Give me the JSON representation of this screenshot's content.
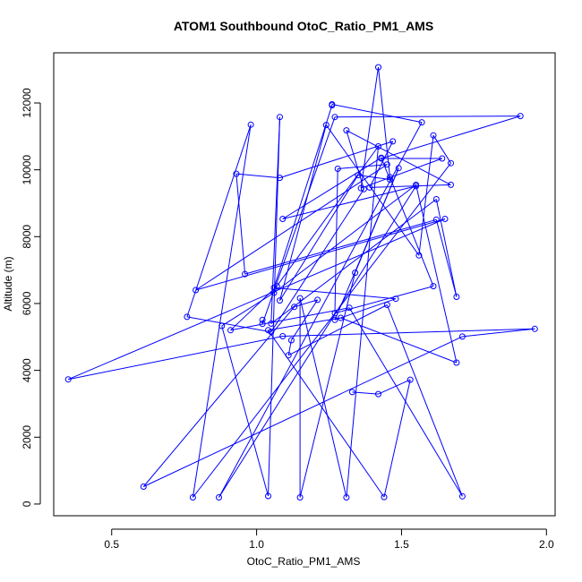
{
  "chart_data": {
    "type": "line",
    "title": "ATOM1 Southbound OtoC_Ratio_PM1_AMS",
    "xlabel": "OtoC_Ratio_PM1_AMS",
    "ylabel": "Altitude (m)",
    "xlim": [
      0.3,
      2.03
    ],
    "ylim": [
      -350,
      13500
    ],
    "xticks": [
      0.5,
      1.0,
      1.5,
      2.0
    ],
    "xtick_labels": [
      "0.5",
      "1.0",
      "1.5",
      "2.0"
    ],
    "yticks": [
      0,
      2000,
      4000,
      6000,
      8000,
      10000,
      12000
    ],
    "ytick_labels": [
      "0",
      "2000",
      "4000",
      "6000",
      "8000",
      "10000",
      "12000"
    ],
    "grid": false,
    "series_color": "#0000ff",
    "points": [
      {
        "x": 1.33,
        "y": 3350
      },
      {
        "x": 1.42,
        "y": 3290
      },
      {
        "x": 1.53,
        "y": 3720
      },
      {
        "x": 1.44,
        "y": 210
      },
      {
        "x": 1.04,
        "y": 5200
      },
      {
        "x": 1.29,
        "y": 5570
      },
      {
        "x": 1.69,
        "y": 4230
      },
      {
        "x": 1.55,
        "y": 9550
      },
      {
        "x": 1.06,
        "y": 6320
      },
      {
        "x": 0.88,
        "y": 5330
      },
      {
        "x": 1.04,
        "y": 240
      },
      {
        "x": 1.08,
        "y": 11580
      },
      {
        "x": 1.05,
        "y": 5400
      },
      {
        "x": 1.62,
        "y": 9120
      },
      {
        "x": 1.69,
        "y": 6200
      },
      {
        "x": 1.62,
        "y": 8510
      },
      {
        "x": 0.96,
        "y": 6880
      },
      {
        "x": 0.93,
        "y": 9880
      },
      {
        "x": 1.08,
        "y": 9760
      },
      {
        "x": 1.47,
        "y": 10850
      },
      {
        "x": 1.39,
        "y": 9470
      },
      {
        "x": 1.67,
        "y": 9550
      },
      {
        "x": 1.31,
        "y": 11180
      },
      {
        "x": 1.37,
        "y": 9420
      },
      {
        "x": 1.05,
        "y": 5150
      },
      {
        "x": 0.76,
        "y": 5600
      },
      {
        "x": 0.98,
        "y": 11350
      },
      {
        "x": 0.78,
        "y": 200
      },
      {
        "x": 1.67,
        "y": 10200
      },
      {
        "x": 1.61,
        "y": 11030
      },
      {
        "x": 1.56,
        "y": 7440
      },
      {
        "x": 1.24,
        "y": 11340
      },
      {
        "x": 1.08,
        "y": 6090
      },
      {
        "x": 1.35,
        "y": 9840
      },
      {
        "x": 1.46,
        "y": 9710
      },
      {
        "x": 1.43,
        "y": 10360
      },
      {
        "x": 1.09,
        "y": 8530
      },
      {
        "x": 1.55,
        "y": 9510
      },
      {
        "x": 0.87,
        "y": 200
      },
      {
        "x": 1.57,
        "y": 11420
      },
      {
        "x": 1.26,
        "y": 11960
      },
      {
        "x": 1.26,
        "y": 11930
      },
      {
        "x": 1.06,
        "y": 6470
      },
      {
        "x": 1.48,
        "y": 6140
      },
      {
        "x": 1.27,
        "y": 5510
      },
      {
        "x": 1.49,
        "y": 10050
      },
      {
        "x": 1.34,
        "y": 6920
      },
      {
        "x": 1.15,
        "y": 200
      },
      {
        "x": 1.15,
        "y": 6160
      },
      {
        "x": 1.31,
        "y": 200
      },
      {
        "x": 1.42,
        "y": 10700
      },
      {
        "x": 1.07,
        "y": 6520
      },
      {
        "x": 0.91,
        "y": 5200
      },
      {
        "x": 1.32,
        "y": 5870
      },
      {
        "x": 1.71,
        "y": 230
      },
      {
        "x": 1.45,
        "y": 5960
      },
      {
        "x": 1.11,
        "y": 4450
      },
      {
        "x": 1.12,
        "y": 4900
      },
      {
        "x": 1.21,
        "y": 6110
      },
      {
        "x": 1.13,
        "y": 5900
      },
      {
        "x": 0.61,
        "y": 520
      },
      {
        "x": 1.71,
        "y": 5010
      },
      {
        "x": 1.96,
        "y": 5240
      },
      {
        "x": 1.09,
        "y": 5020
      },
      {
        "x": 0.35,
        "y": 3730
      },
      {
        "x": 1.65,
        "y": 8530
      },
      {
        "x": 0.79,
        "y": 6400
      },
      {
        "x": 1.45,
        "y": 10160
      },
      {
        "x": 1.28,
        "y": 10030
      },
      {
        "x": 1.27,
        "y": 5710
      },
      {
        "x": 1.61,
        "y": 6520
      },
      {
        "x": 1.46,
        "y": 9780
      },
      {
        "x": 1.42,
        "y": 13070
      },
      {
        "x": 1.36,
        "y": 9450
      },
      {
        "x": 1.64,
        "y": 10340
      },
      {
        "x": 1.43,
        "y": 10340
      },
      {
        "x": 1.91,
        "y": 11610
      },
      {
        "x": 1.27,
        "y": 11580
      },
      {
        "x": 1.02,
        "y": 5390
      },
      {
        "x": 1.02,
        "y": 5510
      }
    ]
  }
}
